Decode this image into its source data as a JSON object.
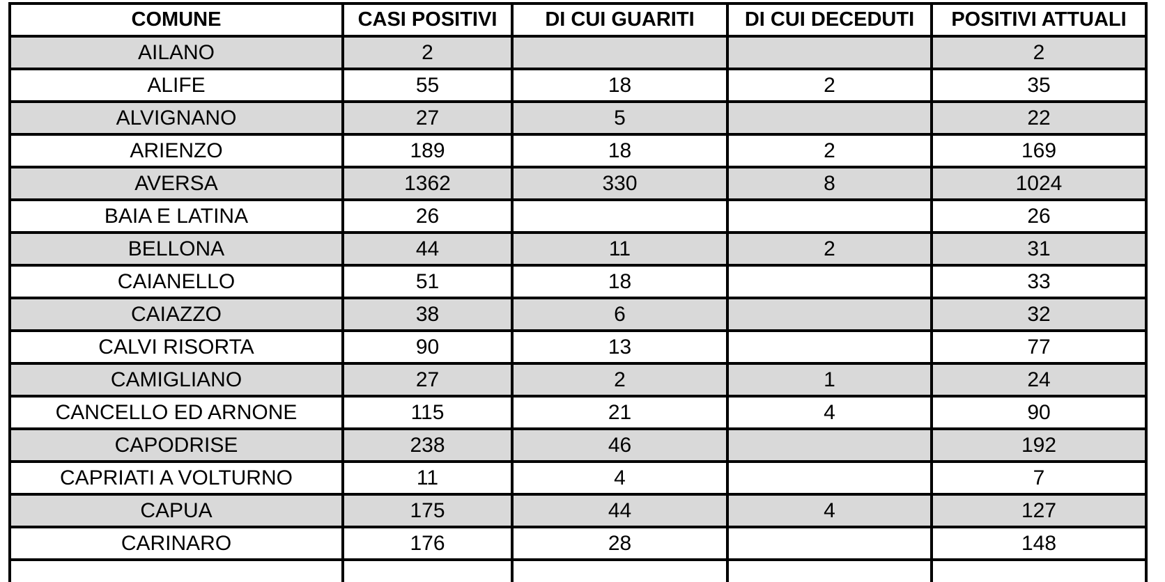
{
  "page": {
    "background_color": "#ffffff",
    "text_color": "#000000",
    "border_color": "#000000",
    "zebra_row_color": "#d9d9d9"
  },
  "table": {
    "columns": [
      "COMUNE",
      "CASI POSITIVI",
      "DI CUI GUARITI",
      "DI CUI DECEDUTI",
      "POSITIVI ATTUALI"
    ],
    "rows": [
      [
        "AILANO",
        "2",
        "",
        "",
        "2"
      ],
      [
        "ALIFE",
        "55",
        "18",
        "2",
        "35"
      ],
      [
        "ALVIGNANO",
        "27",
        "5",
        "",
        "22"
      ],
      [
        "ARIENZO",
        "189",
        "18",
        "2",
        "169"
      ],
      [
        "AVERSA",
        "1362",
        "330",
        "8",
        "1024"
      ],
      [
        "BAIA E LATINA",
        "26",
        "",
        "",
        "26"
      ],
      [
        "BELLONA",
        "44",
        "11",
        "2",
        "31"
      ],
      [
        "CAIANELLO",
        "51",
        "18",
        "",
        "33"
      ],
      [
        "CAIAZZO",
        "38",
        "6",
        "",
        "32"
      ],
      [
        "CALVI RISORTA",
        "90",
        "13",
        "",
        "77"
      ],
      [
        "CAMIGLIANO",
        "27",
        "2",
        "1",
        "24"
      ],
      [
        "CANCELLO ED ARNONE",
        "115",
        "21",
        "4",
        "90"
      ],
      [
        "CAPODRISE",
        "238",
        "46",
        "",
        "192"
      ],
      [
        "CAPRIATI A VOLTURNO",
        "11",
        "4",
        "",
        "7"
      ],
      [
        "CAPUA",
        "175",
        "44",
        "4",
        "127"
      ],
      [
        "CARINARO",
        "176",
        "28",
        "",
        "148"
      ]
    ]
  }
}
